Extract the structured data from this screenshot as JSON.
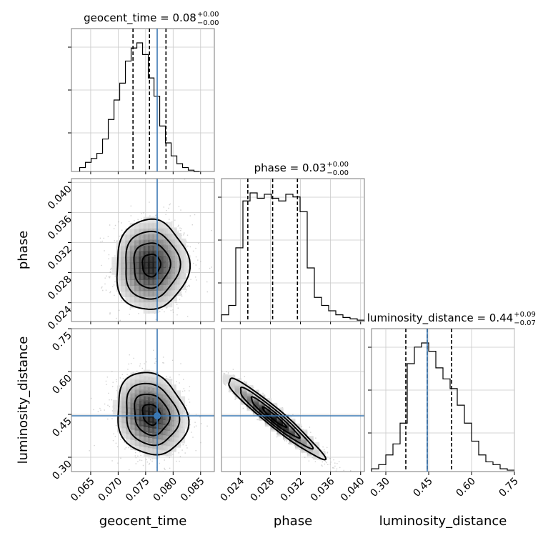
{
  "chart_data": {
    "type": "corner",
    "parameters": [
      {
        "name": "geocent_time",
        "xlabel": "geocent_time",
        "ylabel": "",
        "range": [
          0.0615,
          0.0875
        ],
        "ticks": [
          0.065,
          0.07,
          0.075,
          0.08,
          0.085
        ],
        "tick_labels": [
          "0.065",
          "0.070",
          "0.075",
          "0.080",
          "0.085"
        ],
        "title_main": "geocent_time = 0.08",
        "title_plus": "+0.00",
        "title_minus": "−0.00",
        "truth": 0.0771,
        "quantiles": [
          0.0727,
          0.0757,
          0.0787
        ],
        "hist_edges_start": 0.063,
        "hist_bin_width": 0.00104,
        "hist_counts": [
          3,
          7,
          10,
          14,
          25,
          40,
          55,
          68,
          85,
          95,
          99,
          90,
          72,
          58,
          35,
          22,
          12,
          6,
          3,
          1,
          0
        ]
      },
      {
        "name": "phase",
        "xlabel": "phase",
        "ylabel": "phase",
        "range": [
          0.0215,
          0.0405
        ],
        "ticks": [
          0.024,
          0.028,
          0.032,
          0.036,
          0.04
        ],
        "tick_labels": [
          "0.024",
          "0.028",
          "0.032",
          "0.036",
          "0.040"
        ],
        "title_main": "phase = 0.03",
        "title_plus": "+0.00",
        "title_minus": "−0.00",
        "truth": null,
        "quantiles": [
          0.025,
          0.0283,
          0.0316
        ],
        "hist_edges_start": 0.0215,
        "hist_bin_width": 0.00095,
        "hist_counts": [
          5,
          12,
          55,
          90,
          96,
          92,
          95,
          92,
          90,
          95,
          93,
          82,
          40,
          18,
          12,
          8,
          5,
          3,
          2,
          1
        ]
      },
      {
        "name": "luminosity_distance",
        "xlabel": "luminosity_distance",
        "ylabel": "luminosity_distance",
        "range": [
          0.25,
          0.75
        ],
        "ticks": [
          0.3,
          0.45,
          0.6,
          0.75
        ],
        "tick_labels": [
          "0.30",
          "0.45",
          "0.60",
          "0.75"
        ],
        "title_main": "luminosity_distance = 0.44",
        "title_plus": "+0.09",
        "title_minus": "−0.07",
        "truth": 0.445,
        "quantiles": [
          0.37,
          0.445,
          0.53
        ],
        "hist_edges_start": 0.25,
        "hist_bin_width": 0.025,
        "hist_counts": [
          2,
          5,
          12,
          20,
          35,
          78,
          90,
          93,
          87,
          75,
          67,
          60,
          48,
          35,
          22,
          12,
          7,
          5,
          2,
          1
        ]
      }
    ],
    "pairs": [
      {
        "x": "geocent_time",
        "y": "phase",
        "truth_x": 0.0771,
        "truth_y": null,
        "center": [
          0.076,
          0.029
        ],
        "sigma": [
          0.0033,
          0.003
        ],
        "corr": 0.02,
        "contour_levels": [
          0.5,
          1.0,
          1.5,
          2.0
        ]
      },
      {
        "x": "geocent_time",
        "y": "luminosity_distance",
        "truth_x": 0.0771,
        "truth_y": 0.445,
        "center": [
          0.076,
          0.45
        ],
        "sigma": [
          0.0032,
          0.072
        ],
        "corr": -0.15,
        "contour_levels": [
          0.5,
          1.0,
          1.5,
          2.0
        ]
      },
      {
        "x": "phase",
        "y": "luminosity_distance",
        "truth_x": null,
        "truth_y": 0.445,
        "center": [
          0.0285,
          0.44
        ],
        "sigma": [
          0.0032,
          0.07
        ],
        "corr": -0.96,
        "contour_levels": [
          0.5,
          1.0,
          1.5,
          2.0
        ]
      }
    ],
    "truth_color": "#3a78b4",
    "grid": true
  }
}
